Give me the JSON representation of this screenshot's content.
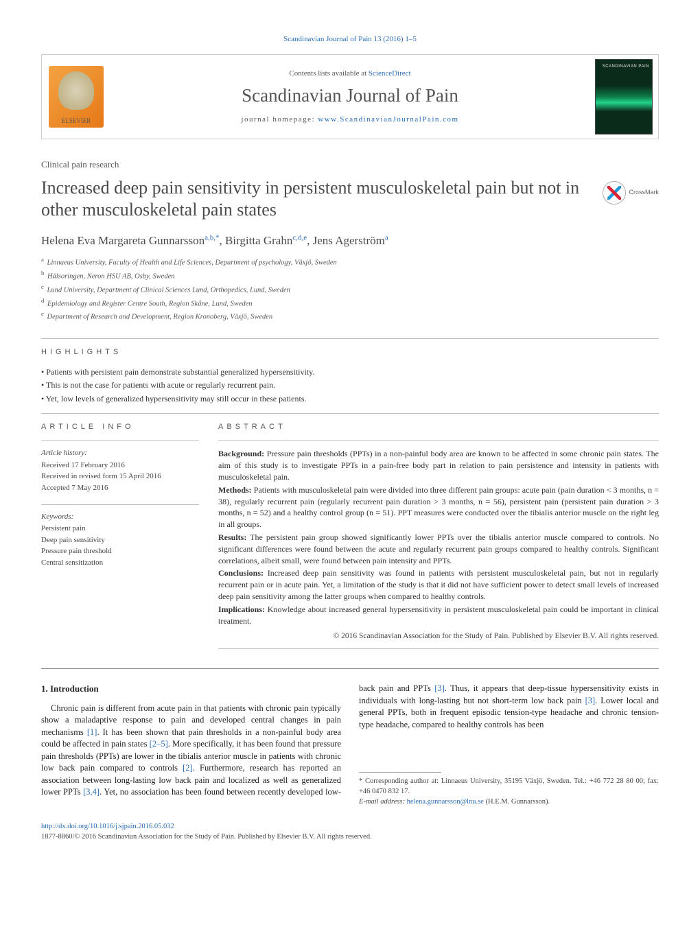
{
  "citation": "Scandinavian Journal of Pain 13 (2016) 1–5",
  "header": {
    "contents_prefix": "Contents lists available at ",
    "contents_link": "ScienceDirect",
    "journal": "Scandinavian Journal of Pain",
    "homepage_prefix": "journal homepage: ",
    "homepage_link": "www.ScandinavianJournalPain.com",
    "elsevier_label": "ELSEVIER"
  },
  "article_type": "Clinical pain research",
  "title": "Increased deep pain sensitivity in persistent musculoskeletal pain but not in other musculoskeletal pain states",
  "crossmark_label": "CrossMark",
  "authors_html": "Helena Eva Margareta Gunnarsson<sup>a,b,*</sup>, Birgitta Grahn<sup>c,d,e</sup>, Jens Agerström<sup>a</sup>",
  "affiliations": [
    {
      "sup": "a",
      "text": "Linnaeus University, Faculty of Health and Life Sciences, Department of psychology, Växjö, Sweden"
    },
    {
      "sup": "b",
      "text": "Hälsoringen, Neron HSU AB, Osby, Sweden"
    },
    {
      "sup": "c",
      "text": "Lund University, Department of Clinical Sciences Lund, Orthopedics, Lund, Sweden"
    },
    {
      "sup": "d",
      "text": "Epidemiology and Register Centre South, Region Skåne, Lund, Sweden"
    },
    {
      "sup": "e",
      "text": "Department of Research and Development, Region Kronoberg, Växjö, Sweden"
    }
  ],
  "highlights": {
    "label": "HIGHLIGHTS",
    "items": [
      "Patients with persistent pain demonstrate substantial generalized hypersensitivity.",
      "This is not the case for patients with acute or regularly recurrent pain.",
      "Yet, low levels of generalized hypersensitivity may still occur in these patients."
    ]
  },
  "article_info": {
    "label": "ARTICLE INFO",
    "history_head": "Article history:",
    "history": [
      "Received 17 February 2016",
      "Received in revised form 15 April 2016",
      "Accepted 7 May 2016"
    ],
    "keywords_head": "Keywords:",
    "keywords": [
      "Persistent pain",
      "Deep pain sensitivity",
      "Pressure pain threshold",
      "Central sensitization"
    ]
  },
  "abstract": {
    "label": "ABSTRACT",
    "sections": [
      {
        "lead": "Background:",
        "text": " Pressure pain thresholds (PPTs) in a non-painful body area are known to be affected in some chronic pain states. The aim of this study is to investigate PPTs in a pain-free body part in relation to pain persistence and intensity in patients with musculoskeletal pain."
      },
      {
        "lead": "Methods:",
        "text": " Patients with musculoskeletal pain were divided into three different pain groups: acute pain (pain duration < 3 months, n = 38), regularly recurrent pain (regularly recurrent pain duration > 3 months, n = 56), persistent pain (persistent pain duration > 3 months, n = 52) and a healthy control group (n = 51). PPT measures were conducted over the tibialis anterior muscle on the right leg in all groups."
      },
      {
        "lead": "Results:",
        "text": " The persistent pain group showed significantly lower PPTs over the tibialis anterior muscle compared to controls. No significant differences were found between the acute and regularly recurrent pain groups compared to healthy controls. Significant correlations, albeit small, were found between pain intensity and PPTs."
      },
      {
        "lead": "Conclusions:",
        "text": " Increased deep pain sensitivity was found in patients with persistent musculoskeletal pain, but not in regularly recurrent pain or in acute pain. Yet, a limitation of the study is that it did not have sufficient power to detect small levels of increased deep pain sensitivity among the latter groups when compared to healthy controls."
      },
      {
        "lead": "Implications:",
        "text": " Knowledge about increased general hypersensitivity in persistent musculoskeletal pain could be important in clinical treatment."
      }
    ],
    "copyright": "© 2016 Scandinavian Association for the Study of Pain. Published by Elsevier B.V. All rights reserved."
  },
  "body": {
    "heading": "1.  Introduction",
    "para1_pre": "Chronic pain is different from acute pain in that patients with chronic pain typically show a maladaptive response to pain and developed central changes in pain mechanisms ",
    "ref1": "[1]",
    "para1_post": ". It has been shown that pain thresholds in a non-painful body area could be",
    "para2_a": "affected in pain states ",
    "ref25": "[2–5]",
    "para2_b": ". More specifically, it has been found that pressure pain thresholds (PPTs) are lower in the tibialis anterior muscle in patients with chronic low back pain compared to controls ",
    "ref2": "[2]",
    "para2_c": ". Furthermore, research has reported an association between long-lasting low back pain and localized as well as generalized lower PPTs ",
    "ref34": "[3,4]",
    "para2_d": ". Yet, no association has been found between recently developed low-back pain and PPTs ",
    "ref3a": "[3]",
    "para2_e": ". Thus, it appears that deep-tissue hypersensitivity exists in individuals with long-lasting but not short-term low back pain ",
    "ref3b": "[3]",
    "para2_f": ". Lower local and general PPTs, both in frequent episodic tension-type headache and chronic tension-type headache, compared to healthy controls has been"
  },
  "footnotes": {
    "corr1": "* Corresponding author at: Linnaeus University, 35195 Växjö, Sweden. Tel.: +46 772 28 80 00; fax: +46 0470 832 17.",
    "email_label": "E-mail address: ",
    "email": "helena.gunnarsson@lnu.se",
    "email_suffix": " (H.E.M. Gunnarsson)."
  },
  "footer": {
    "doi": "http://dx.doi.org/10.1016/j.sjpain.2016.05.032",
    "issn_line": "1877-8860/© 2016 Scandinavian Association for the Study of Pain. Published by Elsevier B.V. All rights reserved."
  },
  "colors": {
    "link": "#2a6db5",
    "text": "#333333",
    "rule": "#bbbbbb"
  }
}
